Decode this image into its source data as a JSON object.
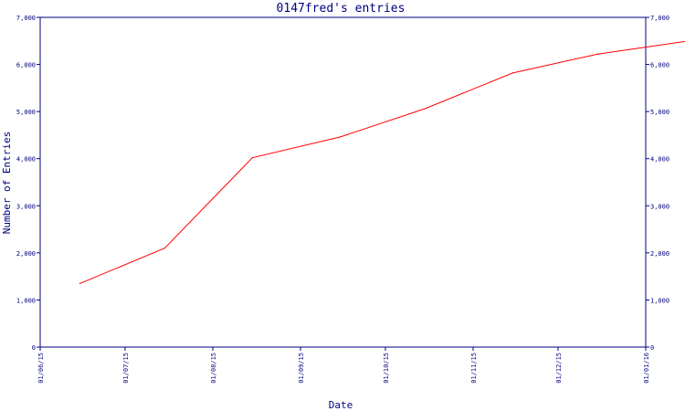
{
  "chart_data": {
    "type": "line",
    "title": "0147fred's entries",
    "xlabel": "Date",
    "ylabel": "Number of Entries",
    "ylim": [
      0,
      7000
    ],
    "y_ticks": [
      0,
      1000,
      2000,
      3000,
      4000,
      5000,
      6000,
      7000
    ],
    "y_tick_labels": [
      "0",
      "1,000",
      "2,000",
      "3,000",
      "4,000",
      "5,000",
      "6,000",
      "7,000"
    ],
    "right_axis_mirrors_left": true,
    "x_tick_labels": [
      "01/06/15",
      "01/07/15",
      "01/08/15",
      "01/09/15",
      "01/10/15",
      "01/11/15",
      "01/12/15",
      "01/01/16"
    ],
    "series": [
      {
        "x": [
          "2015-06-15",
          "2015-07-15",
          "2015-08-15",
          "2015-09-15",
          "2015-10-15",
          "2015-11-15",
          "2015-12-15",
          "2016-01-15"
        ],
        "values": [
          1350,
          2100,
          4020,
          4460,
          5060,
          5820,
          6220,
          6490
        ],
        "color": "#ff0000"
      }
    ],
    "grid": false,
    "axis_color": "#000080"
  }
}
